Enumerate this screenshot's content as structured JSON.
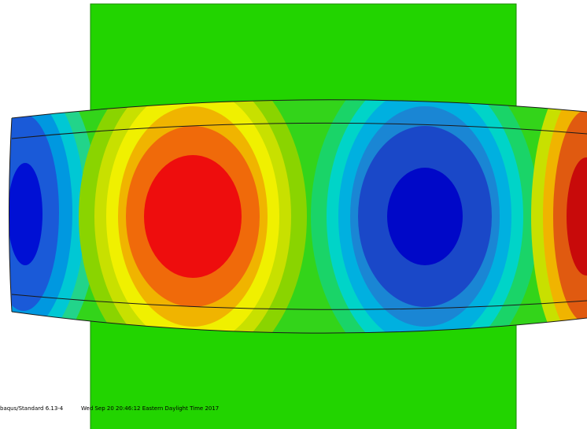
{
  "footer": {
    "product": "baqus/Standard 6.13-4",
    "timestamp": "Wed Sep 20 20:46:12 Eastern Daylight Time 2017"
  }
}
